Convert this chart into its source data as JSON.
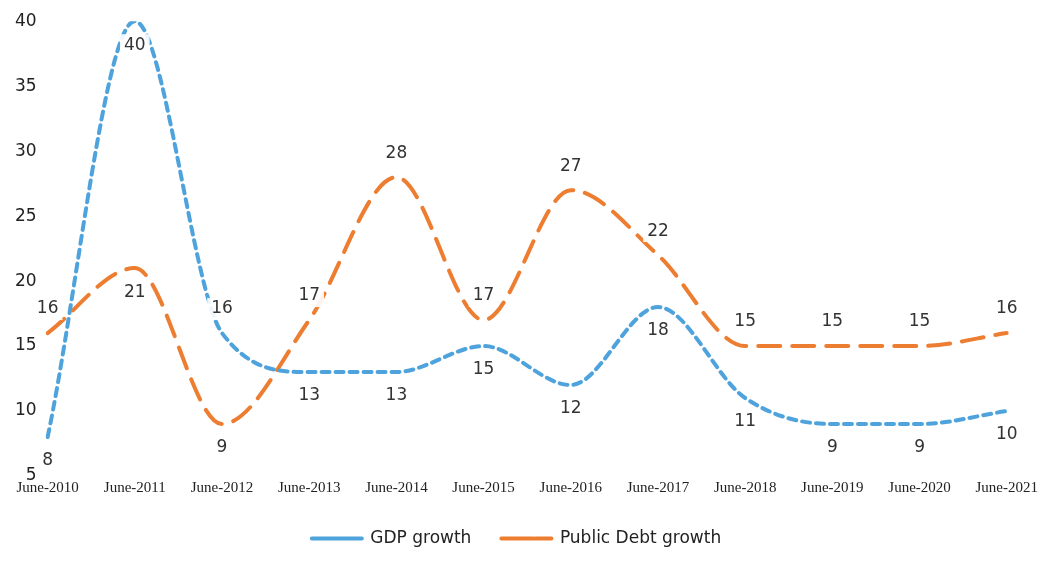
{
  "chart_data": {
    "type": "line",
    "categories": [
      "June-2010",
      "June-2011",
      "June-2012",
      "June-2013",
      "June-2014",
      "June-2015",
      "June-2016",
      "June-2017",
      "June-2018",
      "June-2019",
      "June-2020",
      "June-2021"
    ],
    "series": [
      {
        "name": "GDP growth",
        "color": "#4ea3dc",
        "line_style": "dashed",
        "values": [
          8,
          40,
          16,
          13,
          13,
          15,
          12,
          18,
          11,
          9,
          9,
          10
        ]
      },
      {
        "name": "Public Debt growth",
        "color": "#ed7d31",
        "line_style": "dashed",
        "values": [
          16,
          21,
          9,
          17,
          28,
          17,
          27,
          22,
          15,
          15,
          15,
          16
        ]
      }
    ],
    "ylim": [
      5,
      40
    ],
    "yticks": [
      5,
      10,
      15,
      20,
      25,
      30,
      35,
      40
    ],
    "grid": false,
    "legend": "bottom",
    "marker": "none",
    "data_labels": true
  }
}
